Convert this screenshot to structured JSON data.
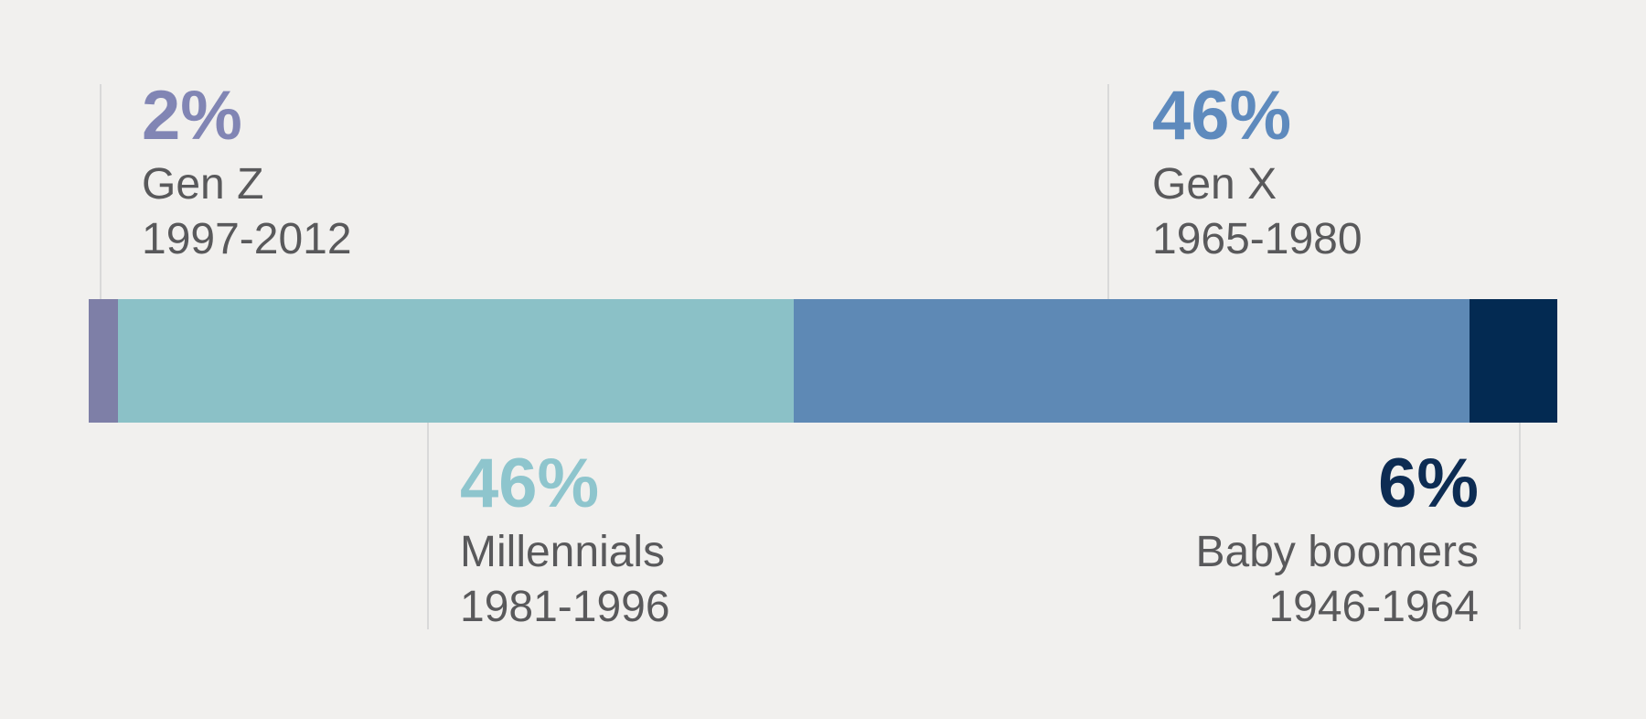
{
  "chart_data": {
    "type": "bar",
    "variant": "horizontal-stacked-single-bar",
    "title": "",
    "xlabel": "",
    "ylabel": "",
    "axis_visible": false,
    "grid": false,
    "legend_position": "annotations-with-leader-lines",
    "background_color": "#f1f0ee",
    "leader_line_color": "#d9d9d9",
    "label_text_color": "#59595b",
    "categories": [
      "Gen Z",
      "Millennials",
      "Gen X",
      "Baby boomers"
    ],
    "values": [
      2,
      46,
      46,
      6
    ],
    "unit": "%",
    "segments": [
      {
        "label": "Gen Z",
        "years": "1997-2012",
        "value": 2,
        "value_label": "2%",
        "bar_color": "#7e7fa7",
        "text_color": "#8185b4",
        "annotation_position": "above-left"
      },
      {
        "label": "Millennials",
        "years": "1981-1996",
        "value": 46,
        "value_label": "46%",
        "bar_color": "#8bc1c7",
        "text_color": "#8ec5cd",
        "annotation_position": "below-left"
      },
      {
        "label": "Gen X",
        "years": "1965-1980",
        "value": 46,
        "value_label": "46%",
        "bar_color": "#5e89b5",
        "text_color": "#5e8abd",
        "annotation_position": "above-right"
      },
      {
        "label": "Baby boomers",
        "years": "1946-1964",
        "value": 6,
        "value_label": "6%",
        "bar_color": "#032a52",
        "text_color": "#0d2c53",
        "annotation_position": "below-right"
      }
    ]
  }
}
